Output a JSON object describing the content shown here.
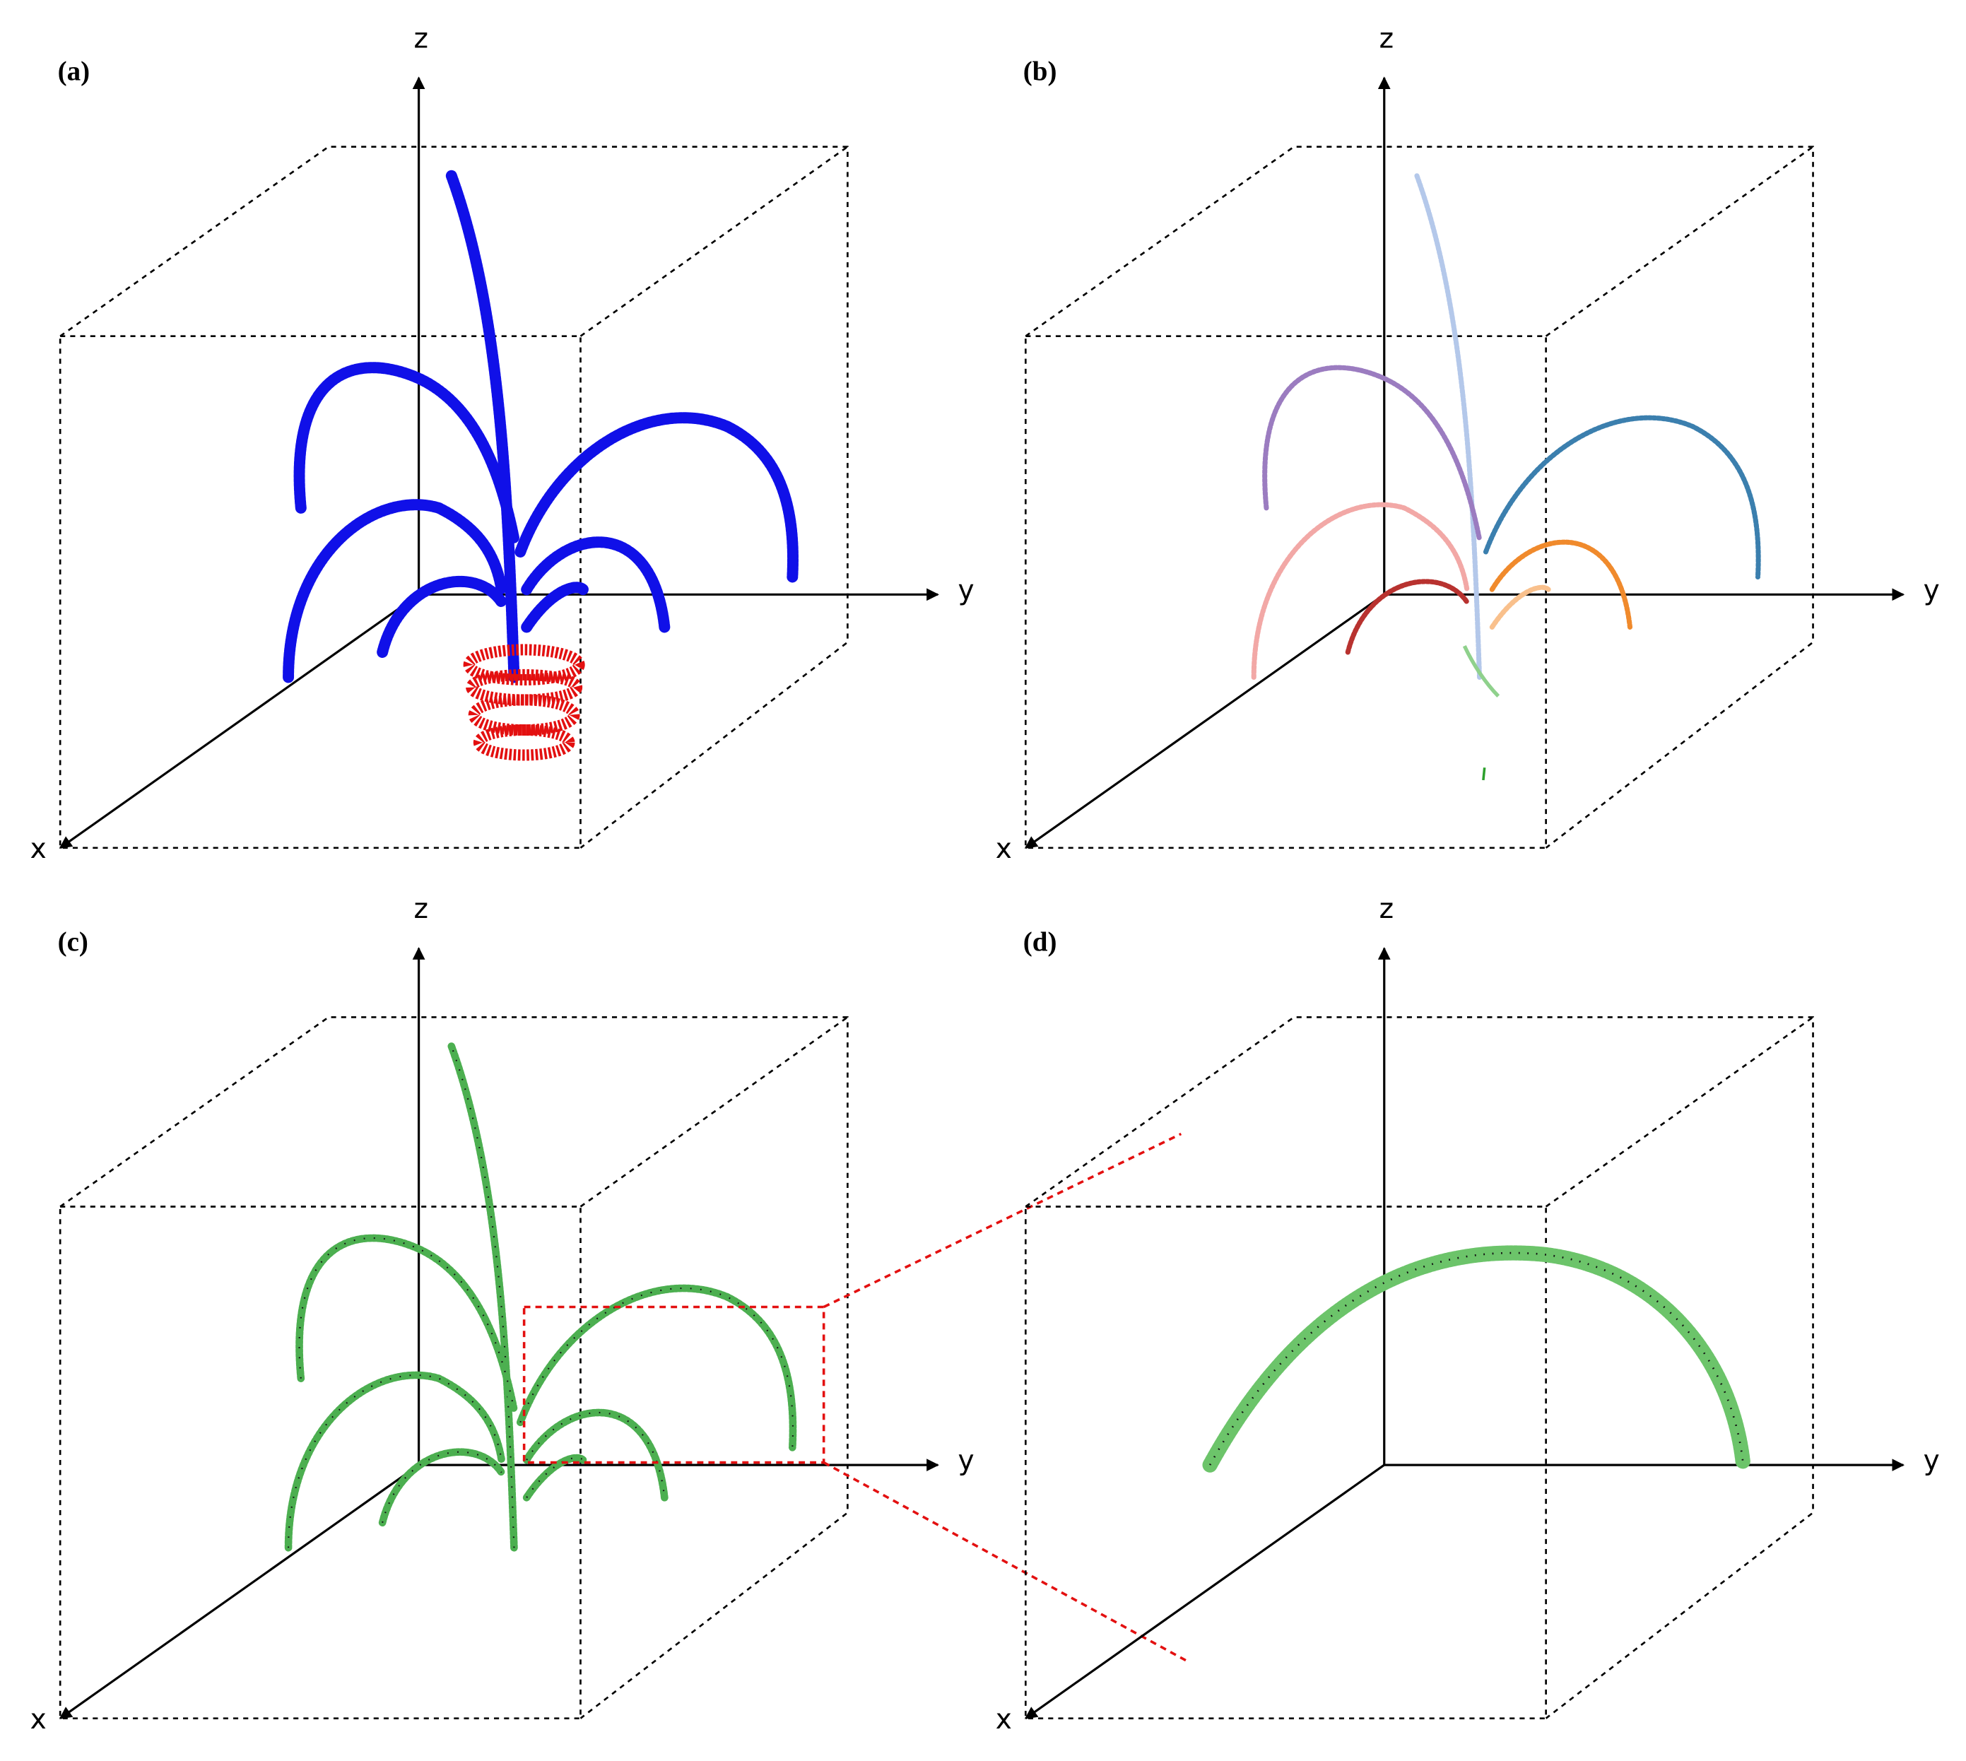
{
  "panels": [
    {
      "label": "(a)",
      "axes": {
        "x": "x",
        "y": "y",
        "z": "z"
      }
    },
    {
      "label": "(b)",
      "axes": {
        "x": "x",
        "y": "y",
        "z": "z"
      }
    },
    {
      "label": "(c)",
      "axes": {
        "x": "x",
        "y": "y",
        "z": "z"
      }
    },
    {
      "label": "(d)",
      "axes": {
        "x": "x",
        "y": "y",
        "z": "z"
      }
    }
  ]
}
